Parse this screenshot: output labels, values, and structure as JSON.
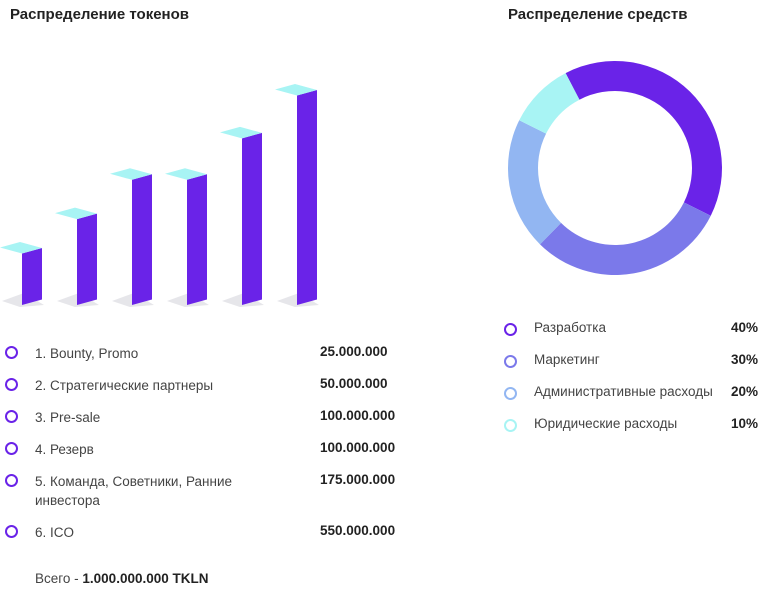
{
  "titles": {
    "tokens": "Распределение токенов",
    "funds": "Распределение средств"
  },
  "chart_data": [
    {
      "type": "bar",
      "title": "Распределение токенов",
      "categories": [
        "1. Bounty, Promo",
        "2. Стратегические партнеры",
        "3. Pre-sale",
        "4. Резерв",
        "5. Команда, Советники, Ранние инвестора",
        "6. ICO"
      ],
      "values": [
        25000000,
        50000000,
        100000000,
        100000000,
        175000000,
        550000000
      ],
      "value_labels": [
        "25.000.000",
        "50.000.000",
        "100.000.000",
        "100.000.000",
        "175.000.000",
        "550.000.000"
      ],
      "colors": {
        "front": "#6a23e8",
        "top": "#a8f4f4",
        "shadow": "#e6e6ea"
      }
    },
    {
      "type": "pie",
      "title": "Распределение средств",
      "categories": [
        "Разработка",
        "Маркетинг",
        "Административные расходы",
        "Юридические расходы"
      ],
      "values": [
        40,
        30,
        20,
        10
      ],
      "value_labels": [
        "40%",
        "30%",
        "20%",
        "10%"
      ],
      "colors": [
        "#6a23e8",
        "#7b79ea",
        "#92b6f2",
        "#a8f4f4"
      ]
    }
  ],
  "total": {
    "prefix": "Всего - ",
    "value": "1.000.000.000 TKLN"
  }
}
